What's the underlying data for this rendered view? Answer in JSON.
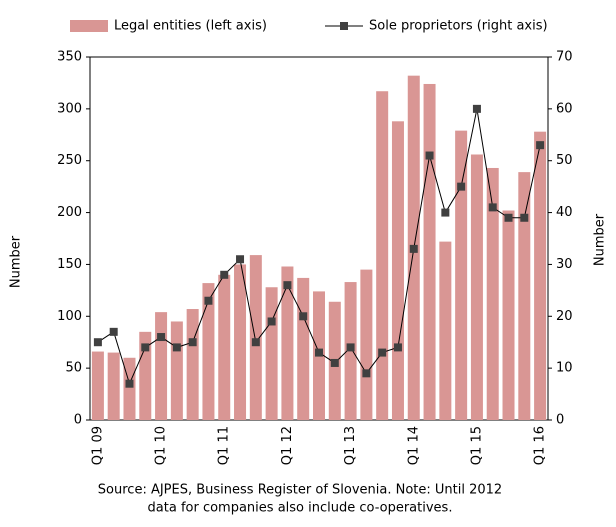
{
  "chart_data": {
    "type": "bar-line",
    "source": [
      "Source: AJPES, Business Register of Slovenia. Note: Until 2012",
      "data for companies also include co-operatives."
    ],
    "ylabel": "Number",
    "y2label": "Number",
    "categories": [
      "Q1 09",
      null,
      null,
      null,
      "Q1 10",
      null,
      null,
      null,
      "Q1 11",
      null,
      null,
      null,
      "Q1 12",
      null,
      null,
      null,
      "Q1 13",
      null,
      null,
      null,
      "Q1 14",
      null,
      null,
      null,
      "Q1 15",
      null,
      null,
      null,
      "Q1 16"
    ],
    "series": [
      {
        "name": "Legal entities (left axis)",
        "color": "#d99694",
        "type": "bar",
        "values": [
          66,
          65,
          60,
          85,
          104,
          95,
          107,
          132,
          140,
          150,
          159,
          128,
          148,
          137,
          124,
          114,
          133,
          145,
          317,
          288,
          332,
          324,
          172,
          279,
          256,
          243,
          202,
          239,
          278
        ]
      },
      {
        "name": "Sole proprietors (right axis)",
        "color": "#404040",
        "type": "line",
        "axis": "y2",
        "values": [
          15,
          17,
          7,
          14,
          16,
          14,
          15,
          23,
          28,
          31,
          15,
          19,
          26,
          20,
          13,
          11,
          14,
          9,
          13,
          14,
          33,
          51,
          40,
          45,
          60,
          41,
          39,
          39,
          53
        ]
      }
    ],
    "ylim": [
      0,
      350
    ],
    "yticks": [
      0,
      50,
      100,
      150,
      200,
      250,
      300,
      350
    ],
    "y2lim": [
      0,
      70
    ],
    "y2ticks": [
      0,
      10,
      20,
      30,
      40,
      50,
      60,
      70
    ],
    "legend": "top"
  }
}
